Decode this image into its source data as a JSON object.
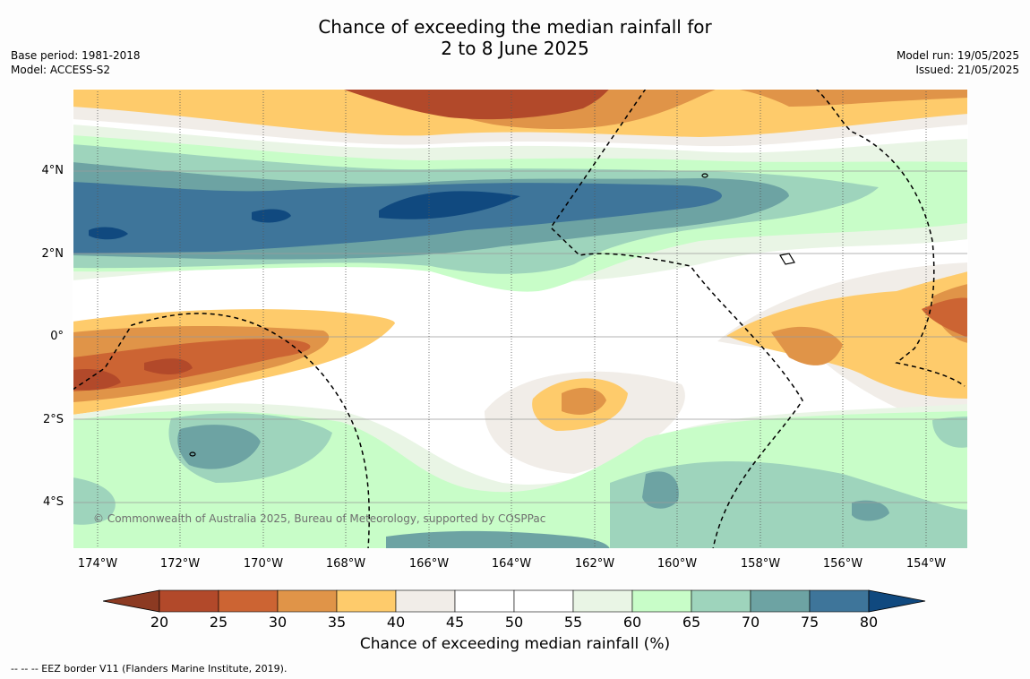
{
  "title": {
    "line1": "Chance of exceeding the median rainfall for",
    "line2": "2 to 8 June 2025"
  },
  "meta_left": {
    "base_period": "Base period: 1981-2018",
    "model": "Model: ACCESS-S2"
  },
  "meta_right": {
    "model_run": "Model run: 19/05/2025",
    "issued": "Issued: 21/05/2025"
  },
  "map": {
    "lat_ticks": [
      "4°N",
      "2°N",
      "0°",
      "2°S",
      "4°S"
    ],
    "lon_ticks": [
      "174°W",
      "172°W",
      "170°W",
      "168°W",
      "166°W",
      "164°W",
      "162°W",
      "160°W",
      "158°W",
      "156°W",
      "154°W"
    ],
    "copyright": "© Commonwealth of Australia 2025, Bureau of Meteorology, supported by COSPPac"
  },
  "colorbar": {
    "title": "Chance of exceeding median rainfall (%)",
    "labels": [
      "20",
      "25",
      "30",
      "35",
      "40",
      "45",
      "50",
      "55",
      "60",
      "65",
      "70",
      "75",
      "80"
    ],
    "colors": [
      "#8c3a22",
      "#b2492a",
      "#cc6433",
      "#e09448",
      "#fecb6b",
      "#f1ede8",
      "#ffffff",
      "#ffffff",
      "#e9f5e5",
      "#c8fdc8",
      "#9ed4bc",
      "#6da3a3",
      "#3e759a",
      "#10497f"
    ]
  },
  "footer": "--  --  -- EEZ border V11 (Flanders Marine Institute, 2019)."
}
